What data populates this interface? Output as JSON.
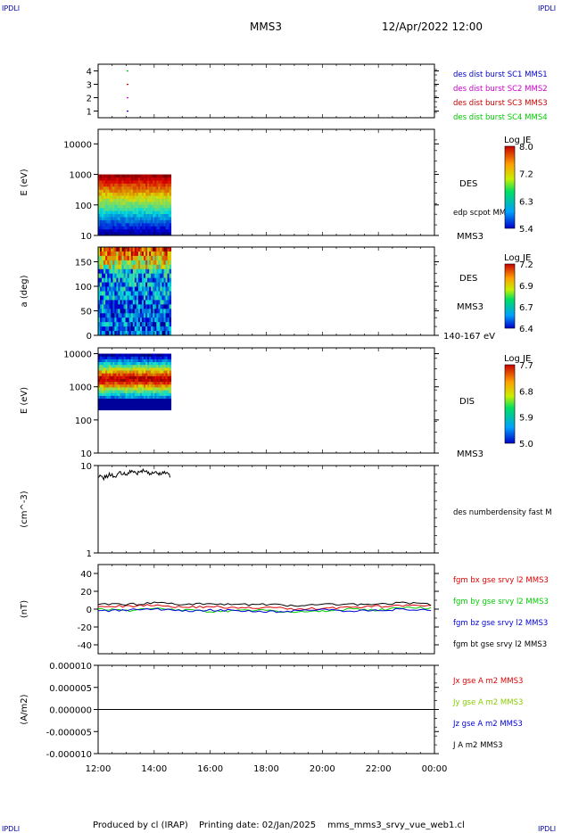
{
  "header": {
    "ipdl_label": "IPDLI",
    "spacecraft": "MMS3",
    "datetime": "12/Apr/2022 12:00"
  },
  "footer": {
    "producer": "Produced by cl (IRAP)",
    "printing_date": "Printing date: 02/Jan/2025",
    "filename": "mms_mms3_srvy_vue_web1.cl"
  },
  "time_axis": {
    "ticks": [
      "12:00",
      "14:00",
      "16:00",
      "18:00",
      "20:00",
      "22:00",
      "00:00"
    ],
    "range_hours": [
      12,
      24
    ]
  },
  "chart_data": [
    {
      "id": "burst",
      "type": "scatter",
      "ylim": [
        0.5,
        4.5
      ],
      "yticks": [
        "4",
        "3",
        "2",
        "1"
      ],
      "series": [
        {
          "name": "des dist burst SC1 MMS1",
          "color": "#0000cc",
          "x": [
            13.05
          ],
          "y": [
            1
          ]
        },
        {
          "name": "des dist burst SC2 MMS2",
          "color": "#cc00cc",
          "x": [
            13.05
          ],
          "y": [
            2
          ]
        },
        {
          "name": "des dist burst SC3 MMS3",
          "color": "#cc0000",
          "x": [
            13.05
          ],
          "y": [
            3
          ]
        },
        {
          "name": "des dist burst SC4 MMS4",
          "color": "#00cc00",
          "x": [
            13.05
          ],
          "y": [
            4
          ]
        }
      ]
    },
    {
      "id": "des_energy",
      "type": "heatmap",
      "ylabel": "E (eV)",
      "yscale": "log",
      "ylim": [
        10,
        30000
      ],
      "yticks": [
        "10000",
        "1000",
        "100",
        "10"
      ],
      "x_range": [
        12,
        14.6
      ],
      "y_data_range": [
        10,
        1000
      ],
      "instrument": "DES",
      "spacecraft": "MMS3",
      "overlay": "edp scpot MMS3",
      "colorbar": {
        "title": "Log JE",
        "ticks": [
          "8.0",
          "7.2",
          "6.3",
          "5.4"
        ],
        "range": [
          5.4,
          8.0
        ]
      }
    },
    {
      "id": "des_pitch",
      "type": "heatmap",
      "ylabel": "a (deg)",
      "ylim": [
        0,
        180
      ],
      "yticks": [
        "150",
        "100",
        "50",
        "0"
      ],
      "x_range": [
        12,
        14.6
      ],
      "instrument": "DES",
      "spacecraft": "MMS3",
      "energy_range": "140-167 eV",
      "colorbar": {
        "title": "Log JE",
        "ticks": [
          "7.2",
          "6.9",
          "6.7",
          "6.4"
        ],
        "range": [
          6.4,
          7.2
        ]
      }
    },
    {
      "id": "dis_energy",
      "type": "heatmap",
      "ylabel": "E (eV)",
      "yscale": "log",
      "ylim": [
        10,
        15000
      ],
      "yticks": [
        "10000",
        "1000",
        "100",
        "10"
      ],
      "x_range": [
        12,
        14.6
      ],
      "y_data_range": [
        200,
        10000
      ],
      "instrument": "DIS",
      "spacecraft": "MMS3",
      "colorbar": {
        "title": "Log JE",
        "ticks": [
          "7.7",
          "6.8",
          "5.9",
          "5.0"
        ],
        "range": [
          5.0,
          7.7
        ]
      }
    },
    {
      "id": "density",
      "type": "line",
      "ylabel": "(cm^-3)",
      "yscale": "log",
      "ylim": [
        1,
        10
      ],
      "yticks": [
        "10",
        "1"
      ],
      "series": [
        {
          "name": "des numberdensity fast M",
          "color": "#000000",
          "x": [
            12.0,
            12.2,
            12.4,
            12.6,
            12.8,
            13.0,
            13.2,
            13.4,
            13.6,
            13.8,
            14.0,
            14.2,
            14.4,
            14.6
          ],
          "y": [
            7.6,
            7.2,
            7.9,
            7.4,
            8.3,
            8.0,
            8.6,
            8.2,
            8.8,
            8.1,
            8.5,
            8.0,
            8.4,
            7.5
          ]
        }
      ]
    },
    {
      "id": "magnetic_field",
      "type": "line",
      "ylabel": "(nT)",
      "ylim": [
        -50,
        50
      ],
      "yticks": [
        "40",
        "20",
        "0",
        "-20",
        "-40"
      ],
      "series": [
        {
          "name": "fgm bx gse srvy l2 MMS3",
          "color": "#dd0000",
          "x": [
            12,
            13,
            14,
            15,
            16,
            17,
            18,
            19,
            20,
            21,
            22,
            23,
            24
          ],
          "y": [
            4,
            3,
            5,
            2,
            3,
            1,
            2,
            0,
            1,
            2,
            3,
            4,
            3
          ]
        },
        {
          "name": "fgm by gse srvy l2 MMS3",
          "color": "#00cc00",
          "x": [
            12,
            13,
            14,
            15,
            16,
            17,
            18,
            19,
            20,
            21,
            22,
            23,
            24
          ],
          "y": [
            1,
            -2,
            2,
            -1,
            -3,
            -2,
            -1,
            -4,
            -2,
            0,
            -1,
            2,
            1
          ]
        },
        {
          "name": "fgm bz gse srvy l2 MMS3",
          "color": "#0000dd",
          "x": [
            12,
            13,
            14,
            15,
            16,
            17,
            18,
            19,
            20,
            21,
            22,
            23,
            24
          ],
          "y": [
            -2,
            -1,
            0,
            -2,
            -1,
            -2,
            -3,
            -2,
            -1,
            -2,
            -1,
            0,
            -1
          ]
        },
        {
          "name": "fgm bt gse srvy l2 MMS3",
          "color": "#000000",
          "x": [
            12,
            13,
            14,
            15,
            16,
            17,
            18,
            19,
            20,
            21,
            22,
            23,
            24
          ],
          "y": [
            6,
            5,
            7,
            5,
            6,
            5,
            5,
            4,
            5,
            5,
            6,
            7,
            5
          ]
        }
      ]
    },
    {
      "id": "current_density",
      "type": "line",
      "ylabel": "(A/m2)",
      "ylim": [
        -1e-05,
        1e-05
      ],
      "yticks": [
        "0.000010",
        "0.000005",
        "0.000000",
        "-0.000005",
        "-0.000010"
      ],
      "series": [
        {
          "name": "Jx gse A m2 MMS3",
          "color": "#dd0000",
          "x": [
            12,
            24
          ],
          "y": [
            0,
            0
          ]
        },
        {
          "name": "Jy gse A m2 MMS3",
          "color": "#88cc00",
          "x": [
            12,
            24
          ],
          "y": [
            0,
            0
          ]
        },
        {
          "name": "Jz gse A m2 MMS3",
          "color": "#0000dd",
          "x": [
            12,
            24
          ],
          "y": [
            0,
            0
          ]
        },
        {
          "name": "J A m2 MMS3",
          "color": "#000000",
          "x": [
            12,
            24
          ],
          "y": [
            0,
            0
          ]
        }
      ]
    }
  ]
}
